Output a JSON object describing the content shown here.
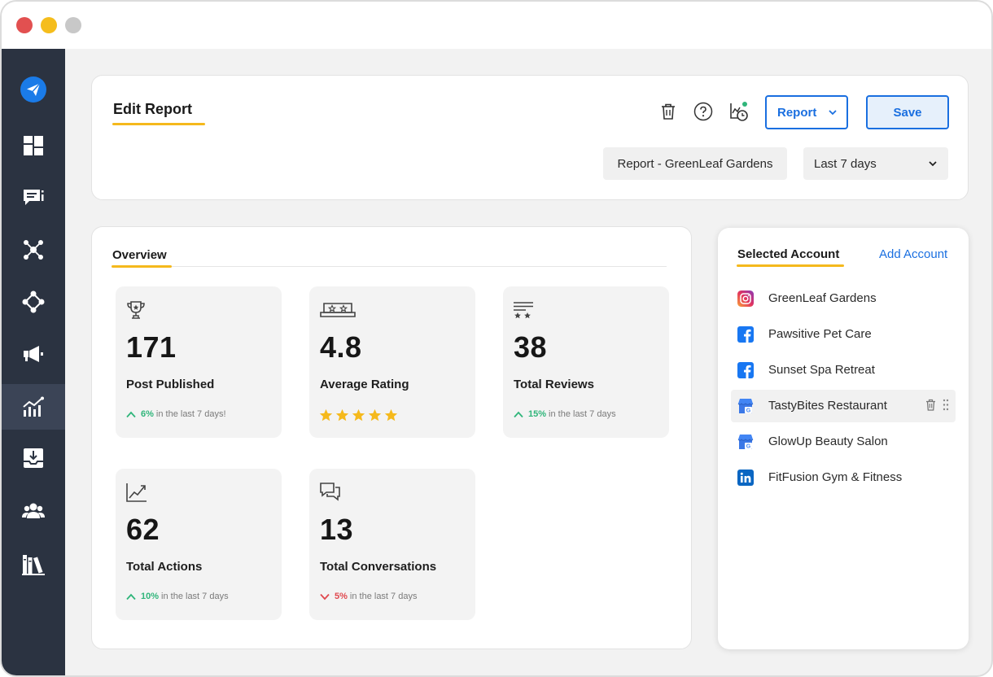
{
  "colors": {
    "accent": "#1a6fe0",
    "underline": "#f5b91c",
    "sidebar": "#2b3341",
    "positive": "#2fb57a",
    "negative": "#e0484e"
  },
  "window": {
    "controls": [
      "close",
      "minimize",
      "maximize"
    ]
  },
  "sidebar": {
    "items": [
      {
        "icon": "paper-plane-logo-icon"
      },
      {
        "icon": "dashboard-grid-icon"
      },
      {
        "icon": "chat-list-icon"
      },
      {
        "icon": "network-icon"
      },
      {
        "icon": "diamond-nodes-icon"
      },
      {
        "icon": "megaphone-icon"
      },
      {
        "icon": "analytics-chart-icon",
        "active": true
      },
      {
        "icon": "inbox-download-icon"
      },
      {
        "icon": "team-icon"
      },
      {
        "icon": "library-books-icon"
      }
    ]
  },
  "header": {
    "title": "Edit Report",
    "icons": [
      "trash-icon",
      "help-icon",
      "schedule-chart-icon"
    ],
    "report_button": "Report",
    "save_button": "Save",
    "report_name": "Report - GreenLeaf Gardens",
    "date_range": "Last 7 days"
  },
  "overview": {
    "title": "Overview",
    "stats": [
      {
        "icon": "trophy-icon",
        "value": "171",
        "label": "Post Published",
        "trend": "up",
        "pct": "6%",
        "suffix": "in the last 7 days!"
      },
      {
        "icon": "rating-badge-icon",
        "value": "4.8",
        "label": "Average Rating",
        "rating": 5
      },
      {
        "icon": "reviews-icon",
        "value": "38",
        "label": "Total Reviews",
        "trend": "up",
        "pct": "15%",
        "suffix": "in the last 7 days"
      },
      {
        "icon": "trend-chart-icon",
        "value": "62",
        "label": "Total Actions",
        "trend": "up",
        "pct": "10%",
        "suffix": "in the last 7 days"
      },
      {
        "icon": "conversation-icon",
        "value": "13",
        "label": "Total Conversations",
        "trend": "down",
        "pct": "5%",
        "suffix": "in the last 7 days"
      }
    ]
  },
  "accounts": {
    "title": "Selected Account",
    "add_label": "Add Account",
    "items": [
      {
        "name": "GreenLeaf Gardens",
        "network": "instagram"
      },
      {
        "name": "Pawsitive Pet Care",
        "network": "facebook"
      },
      {
        "name": "Sunset Spa Retreat",
        "network": "facebook"
      },
      {
        "name": "TastyBites Restaurant",
        "network": "google-business",
        "hovered": true
      },
      {
        "name": "GlowUp Beauty Salon",
        "network": "google-business"
      },
      {
        "name": "FitFusion Gym & Fitness",
        "network": "linkedin"
      }
    ]
  }
}
